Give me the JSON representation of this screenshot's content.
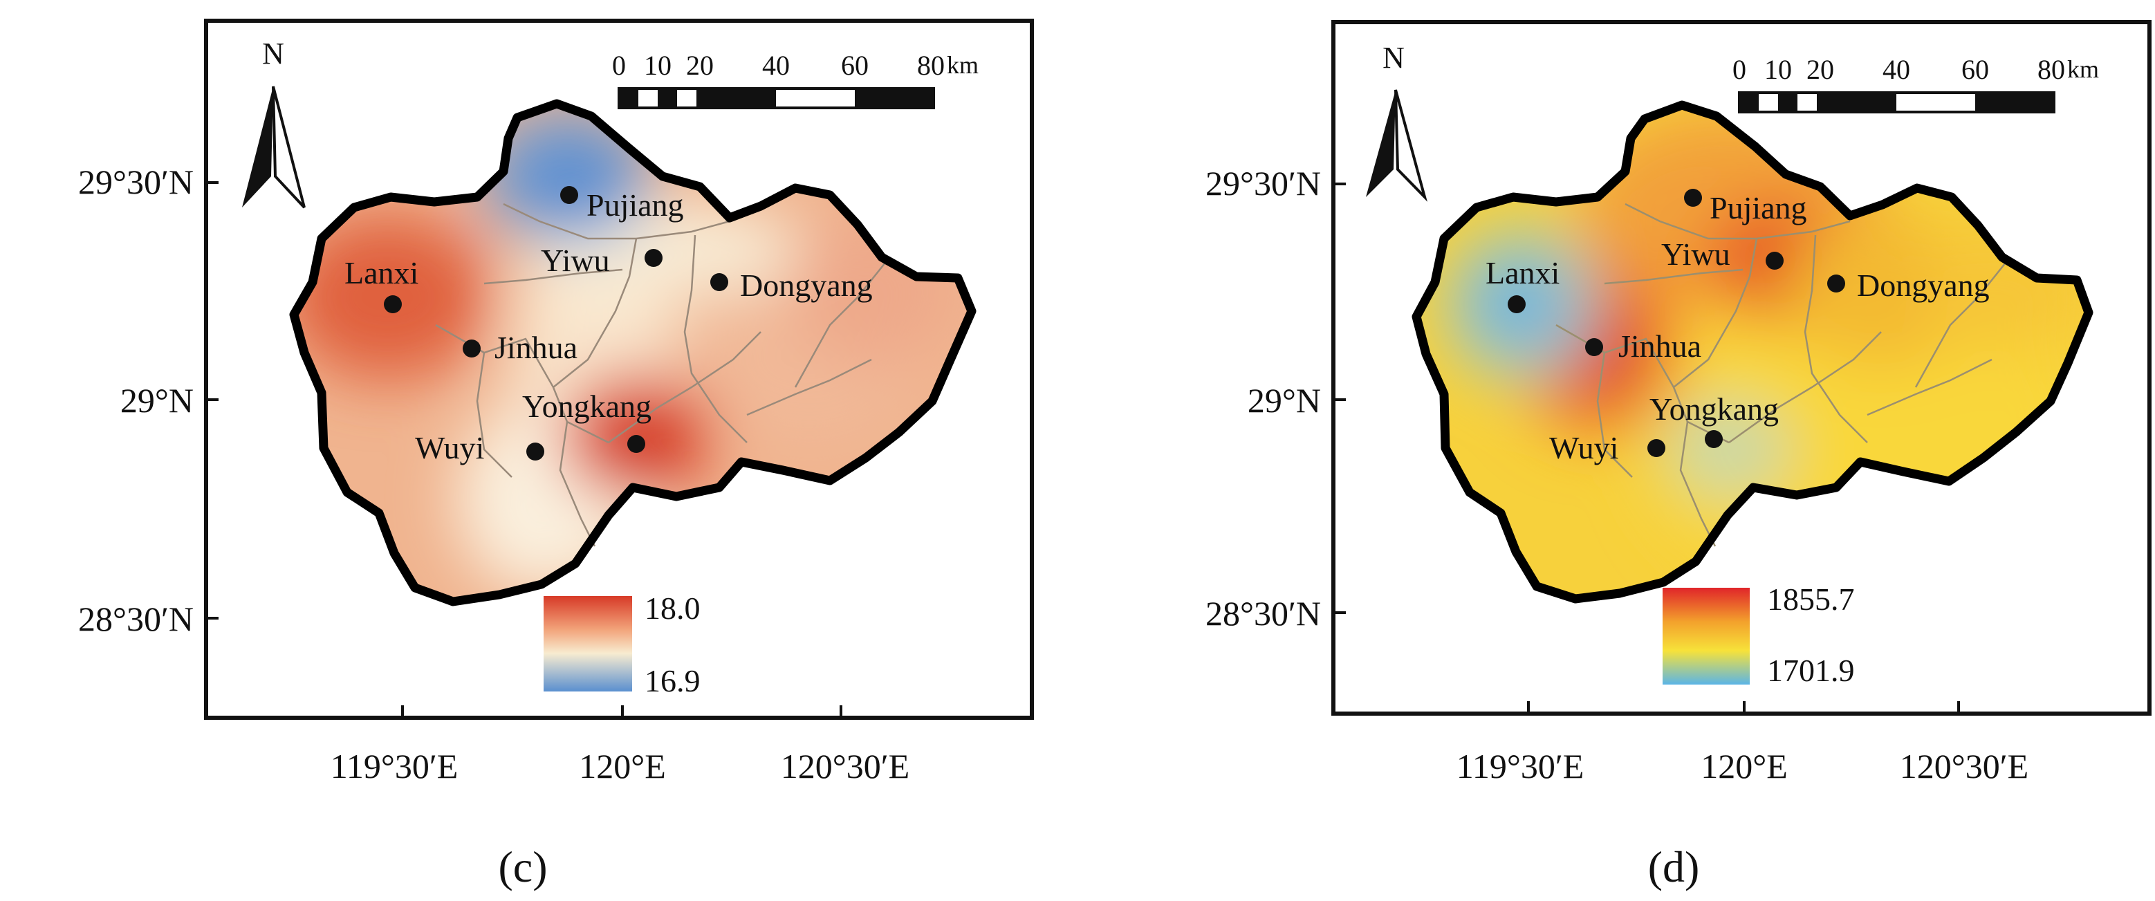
{
  "north_label": "N",
  "scale_bar": {
    "ticks": [
      "0",
      "10",
      "20",
      "40",
      "60",
      "80"
    ],
    "unit": "km"
  },
  "lat_ticks": [
    "29°30′N",
    "29°N",
    "28°30′N"
  ],
  "lon_ticks": [
    "119°30′E",
    "120°E",
    "120°30′E"
  ],
  "cities": [
    "Pujiang",
    "Yiwu",
    "Dongyang",
    "Lanxi",
    "Jinhua",
    "Yongkang",
    "Wuyi"
  ],
  "panels": [
    {
      "caption": "(c)",
      "legend": {
        "max": "18.0",
        "min": "16.9",
        "colors": [
          "#d73a27",
          "#f2a37a",
          "#f8ecd0",
          "#5a8fcf"
        ]
      }
    },
    {
      "caption": "(d)",
      "legend": {
        "max": "1855.7",
        "min": "1701.9",
        "colors": [
          "#e0252a",
          "#f3a12c",
          "#f7e23a",
          "#5bb5e6"
        ]
      }
    }
  ]
}
